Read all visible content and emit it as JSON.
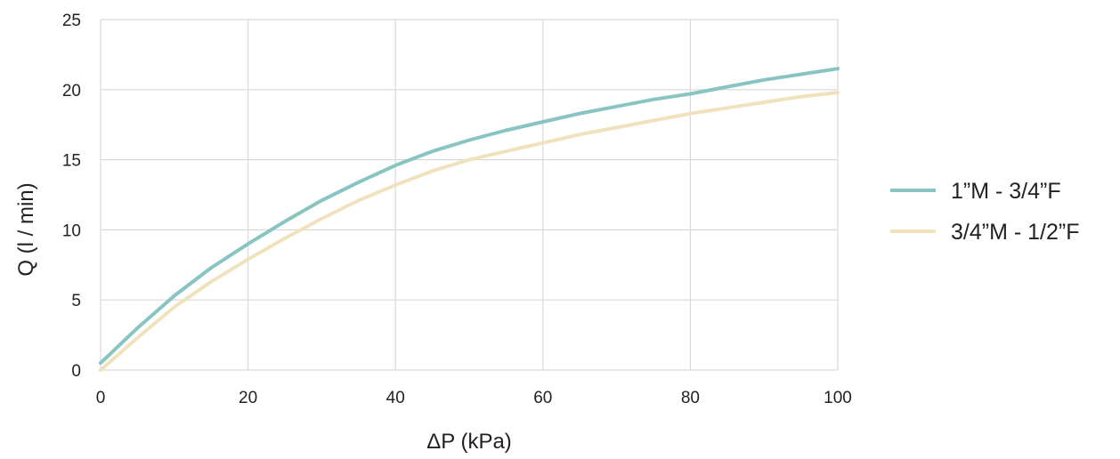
{
  "chart_data": {
    "type": "line",
    "title": "",
    "xlabel": "ΔP (kPa)",
    "ylabel": "Q (l / min)",
    "xlim": [
      0,
      100
    ],
    "ylim": [
      0,
      25
    ],
    "xticks": [
      "0",
      "20",
      "40",
      "60",
      "80",
      "100"
    ],
    "yticks": [
      "0",
      "5",
      "10",
      "15",
      "20",
      "25"
    ],
    "grid": true,
    "legend_position": "right",
    "series": [
      {
        "name": "1”M - 3/4”F",
        "color": "#88c4c2",
        "x": [
          0,
          5,
          10,
          15,
          20,
          25,
          30,
          35,
          40,
          45,
          50,
          55,
          60,
          65,
          70,
          75,
          80,
          85,
          90,
          95,
          100
        ],
        "y": [
          0.5,
          3.0,
          5.3,
          7.3,
          9.0,
          10.6,
          12.1,
          13.4,
          14.6,
          15.6,
          16.4,
          17.1,
          17.7,
          18.3,
          18.8,
          19.3,
          19.7,
          20.2,
          20.7,
          21.1,
          21.5
        ]
      },
      {
        "name": "3/4”M - 1/2”F",
        "color": "#f0e2bd",
        "x": [
          0,
          5,
          10,
          15,
          20,
          25,
          30,
          35,
          40,
          45,
          50,
          55,
          60,
          65,
          70,
          75,
          80,
          85,
          90,
          95,
          100
        ],
        "y": [
          0.0,
          2.3,
          4.5,
          6.3,
          7.9,
          9.4,
          10.8,
          12.1,
          13.2,
          14.2,
          15.0,
          15.6,
          16.2,
          16.8,
          17.3,
          17.8,
          18.3,
          18.7,
          19.1,
          19.5,
          19.8
        ]
      }
    ]
  }
}
